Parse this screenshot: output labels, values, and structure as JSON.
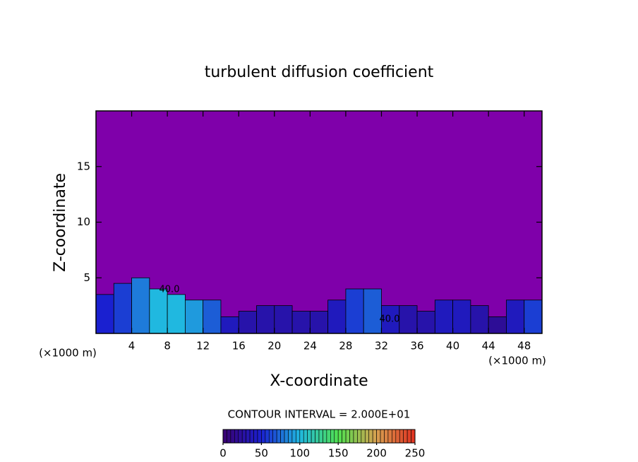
{
  "chart_data": {
    "type": "contour",
    "title": "turbulent diffusion coefficient",
    "x_label": "X-coordinate",
    "y_label": "Z-coordinate",
    "x_unit": "(×1000 m)",
    "y_unit": "(×1000 m)",
    "x": [
      1,
      3,
      5,
      7,
      9,
      11,
      13,
      15,
      17,
      19,
      21,
      23,
      25,
      27,
      29,
      31,
      33,
      35,
      37,
      39,
      41,
      43,
      45,
      47,
      49
    ],
    "layer_top": [
      3.5,
      4.5,
      5,
      4,
      3.5,
      3,
      3,
      1.5,
      2,
      2.5,
      2.5,
      2,
      2,
      3,
      4,
      4,
      2.5,
      2.5,
      2,
      3,
      3,
      2.5,
      1.5,
      3,
      3
    ],
    "values": [
      50,
      60,
      80,
      100,
      100,
      90,
      70,
      40,
      30,
      30,
      30,
      30,
      30,
      40,
      60,
      70,
      40,
      30,
      30,
      40,
      40,
      30,
      20,
      40,
      60
    ],
    "xlim": [
      0,
      50
    ],
    "ylim": [
      0,
      20
    ],
    "xticks": [
      4,
      8,
      12,
      16,
      20,
      24,
      28,
      32,
      36,
      40,
      44,
      48
    ],
    "yticks": [
      5,
      10,
      15
    ],
    "annotations": [
      "40.0",
      "40.0"
    ],
    "contour_interval": "CONTOUR INTERVAL = 2.000E+01",
    "plot_color": "#7f00aa",
    "colorbar": {
      "lim": [
        0,
        250
      ],
      "ticks": [
        0,
        50,
        100,
        150,
        200,
        250
      ],
      "colors": [
        "#3a0070",
        "#1a20d0",
        "#20b8e0",
        "#50e050",
        "#d8a050",
        "#e03020"
      ]
    }
  }
}
